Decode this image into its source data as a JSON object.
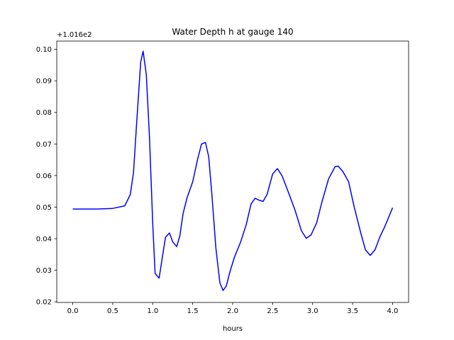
{
  "chart_data": {
    "type": "line",
    "title": "Water Depth h at gauge 140",
    "xlabel": "hours",
    "ylabel": "",
    "offset_label": "+1.016e2",
    "xlim": [
      -0.2,
      4.2
    ],
    "ylim": [
      0.0198,
      0.1026
    ],
    "x_ticks": [
      0.0,
      0.5,
      1.0,
      1.5,
      2.0,
      2.5,
      3.0,
      3.5,
      4.0
    ],
    "x_tick_labels": [
      "0.0",
      "0.5",
      "1.0",
      "1.5",
      "2.0",
      "2.5",
      "3.0",
      "3.5",
      "4.0"
    ],
    "y_ticks": [
      0.02,
      0.03,
      0.04,
      0.05,
      0.06,
      0.07,
      0.08,
      0.09,
      0.1
    ],
    "y_tick_labels": [
      "0.02",
      "0.03",
      "0.04",
      "0.05",
      "0.06",
      "0.07",
      "0.08",
      "0.09",
      "0.10"
    ],
    "grid": false,
    "series": [
      {
        "color": "#0000ff",
        "x": [
          0.0,
          0.3,
          0.5,
          0.65,
          0.72,
          0.76,
          0.8,
          0.85,
          0.88,
          0.92,
          0.96,
          1.0,
          1.03,
          1.08,
          1.12,
          1.16,
          1.21,
          1.25,
          1.3,
          1.34,
          1.38,
          1.43,
          1.5,
          1.56,
          1.61,
          1.66,
          1.7,
          1.74,
          1.79,
          1.84,
          1.88,
          1.92,
          1.96,
          2.02,
          2.1,
          2.17,
          2.23,
          2.28,
          2.33,
          2.38,
          2.43,
          2.5,
          2.56,
          2.62,
          2.7,
          2.78,
          2.86,
          2.92,
          2.98,
          3.05,
          3.12,
          3.2,
          3.28,
          3.32,
          3.38,
          3.45,
          3.52,
          3.6,
          3.66,
          3.72,
          3.78,
          3.84,
          3.9,
          4.0
        ],
        "y": [
          0.0494,
          0.0494,
          0.0496,
          0.0504,
          0.054,
          0.061,
          0.077,
          0.096,
          0.0994,
          0.092,
          0.072,
          0.045,
          0.029,
          0.0275,
          0.034,
          0.0405,
          0.0418,
          0.039,
          0.0375,
          0.041,
          0.048,
          0.053,
          0.058,
          0.065,
          0.07,
          0.0705,
          0.066,
          0.054,
          0.037,
          0.026,
          0.0236,
          0.025,
          0.029,
          0.034,
          0.039,
          0.0445,
          0.051,
          0.0528,
          0.0522,
          0.0518,
          0.054,
          0.0605,
          0.0622,
          0.0598,
          0.0545,
          0.049,
          0.0425,
          0.0401,
          0.0412,
          0.045,
          0.052,
          0.059,
          0.0628,
          0.063,
          0.0612,
          0.058,
          0.05,
          0.042,
          0.0365,
          0.0347,
          0.0365,
          0.0405,
          0.0437,
          0.0498
        ]
      }
    ]
  }
}
